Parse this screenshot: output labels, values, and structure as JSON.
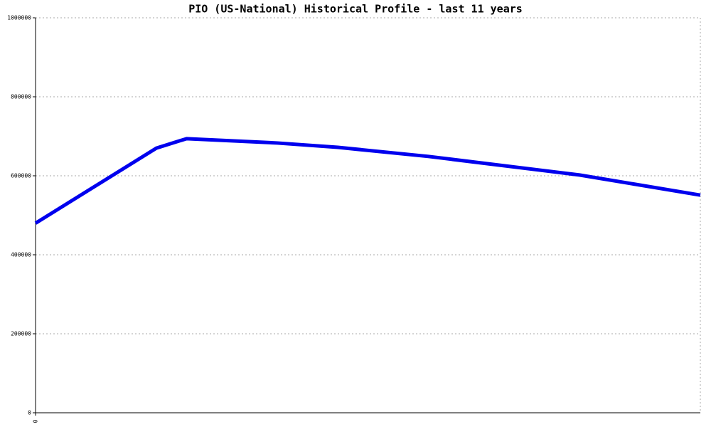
{
  "chart_data": {
    "type": "line",
    "title": "PIO (US-National) Historical Profile - last 11 years",
    "x": [
      0,
      2,
      2.5,
      4,
      5,
      6.5,
      9,
      11
    ],
    "xlim": [
      0,
      11
    ],
    "xticks": [
      0
    ],
    "series": [
      {
        "color": "#0000ee",
        "values": [
          480000,
          670000,
          694000,
          683000,
          672000,
          649000,
          602000,
          551000
        ]
      }
    ],
    "ylim": [
      0,
      1000000
    ],
    "yticks": [
      0,
      200000,
      400000,
      600000,
      800000,
      1000000
    ],
    "grid": true
  }
}
